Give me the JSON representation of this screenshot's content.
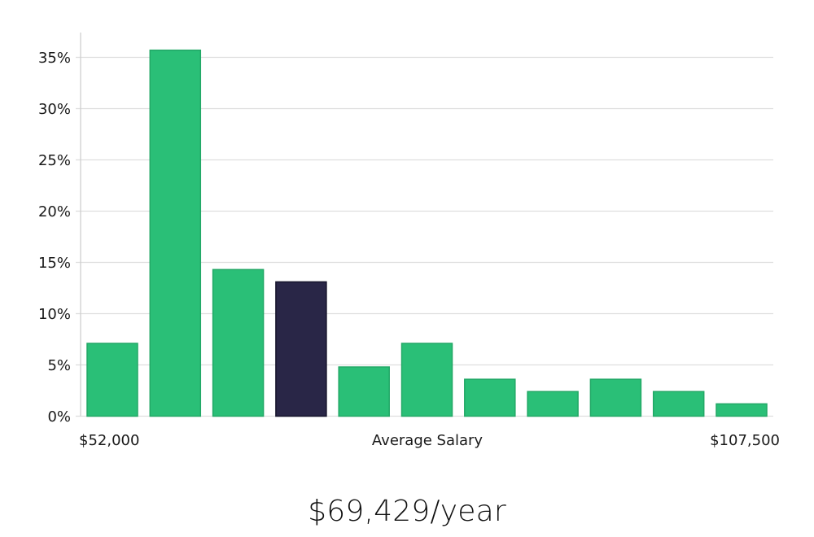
{
  "chart_data": {
    "type": "bar",
    "title": "",
    "xlabel": "Average Salary",
    "ylabel": "",
    "x_min_label": "$52,000",
    "x_max_label": "$107,500",
    "ylim": [
      0,
      35
    ],
    "y_ticks": [
      0,
      5,
      10,
      15,
      20,
      25,
      30,
      35
    ],
    "y_tick_labels": [
      "0%",
      "5%",
      "10%",
      "15%",
      "20%",
      "25%",
      "30%",
      "35%"
    ],
    "values": [
      7.1,
      35.7,
      14.3,
      13.1,
      4.8,
      7.1,
      3.6,
      2.4,
      3.6,
      2.4,
      1.2
    ],
    "highlight_index": 3,
    "grid": true,
    "colors": {
      "bar": "#2abf77",
      "bar_border": "#22a866",
      "highlight": "#292647",
      "highlight_border": "#15132b"
    }
  },
  "summary": {
    "salary_text": "$69,429/year"
  }
}
